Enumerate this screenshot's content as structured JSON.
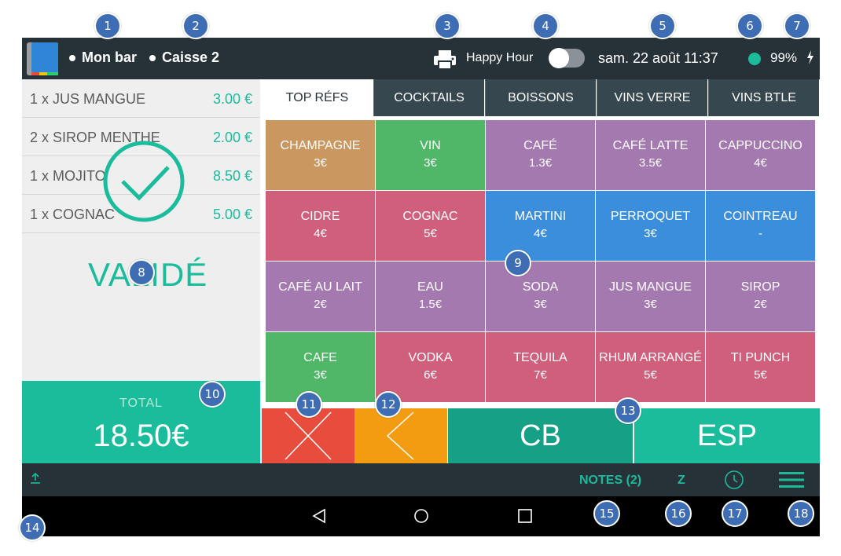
{
  "header": {
    "bar_name": "Mon bar",
    "register_name": "Caisse 2",
    "happy_hour_label": "Happy Hour",
    "happy_hour_on": false,
    "datetime": "sam. 22 août 11:37",
    "battery": "99%",
    "status_color": "#1abc9c"
  },
  "ticket": {
    "items": [
      {
        "label": "1 x JUS MANGUE",
        "price": "3.00 €"
      },
      {
        "label": "2 x SIROP MENTHE",
        "price": "2.00 €"
      },
      {
        "label": "1 x MOJITO",
        "price": "8.50 €"
      },
      {
        "label": "1 x COGNAC",
        "price": "5.00 €"
      }
    ],
    "validated_label": "VALIDÉ",
    "total_label": "TOTAL",
    "total_value": "18.50€"
  },
  "tabs": [
    {
      "label": "TOP RÉFS",
      "active": true
    },
    {
      "label": "COCKTAILS",
      "active": false
    },
    {
      "label": "BOISSONS",
      "active": false
    },
    {
      "label": "VINS VERRE",
      "active": false
    },
    {
      "label": "VINS BTLE",
      "active": false
    }
  ],
  "products": [
    {
      "name": "CHAMPAGNE",
      "price": "3€",
      "color": "#c9975f"
    },
    {
      "name": "VIN",
      "price": "3€",
      "color": "#4fb767"
    },
    {
      "name": "CAFÉ",
      "price": "1.3€",
      "color": "#a479b0"
    },
    {
      "name": "CAFÉ LATTE",
      "price": "3.5€",
      "color": "#a479b0"
    },
    {
      "name": "CAPPUCCINO",
      "price": "4€",
      "color": "#a479b0"
    },
    {
      "name": "CIDRE",
      "price": "4€",
      "color": "#d05f7c"
    },
    {
      "name": "COGNAC",
      "price": "5€",
      "color": "#d05f7c"
    },
    {
      "name": "MARTINI",
      "price": "4€",
      "color": "#3b8edb"
    },
    {
      "name": "PERROQUET",
      "price": "3€",
      "color": "#3b8edb"
    },
    {
      "name": "COINTREAU",
      "price": "-",
      "color": "#3b8edb"
    },
    {
      "name": "CAFÉ AU LAIT",
      "price": "2€",
      "color": "#a479b0"
    },
    {
      "name": "EAU",
      "price": "1.5€",
      "color": "#a479b0"
    },
    {
      "name": "SODA",
      "price": "3€",
      "color": "#a479b0"
    },
    {
      "name": "JUS MANGUE",
      "price": "3€",
      "color": "#a479b0"
    },
    {
      "name": "SIROP",
      "price": "2€",
      "color": "#a479b0"
    },
    {
      "name": "CAFE",
      "price": "3€",
      "color": "#4fb767"
    },
    {
      "name": "VODKA",
      "price": "6€",
      "color": "#d05f7c"
    },
    {
      "name": "TEQUILA",
      "price": "7€",
      "color": "#d05f7c"
    },
    {
      "name": "RHUM ARRANGÉ",
      "price": "5€",
      "color": "#d05f7c"
    },
    {
      "name": "TI PUNCH",
      "price": "5€",
      "color": "#d05f7c"
    }
  ],
  "actions": {
    "cb_label": "CB",
    "esp_label": "ESP"
  },
  "footer": {
    "notes_label": "NOTES (2)",
    "z_label": "Z"
  },
  "callouts": [
    "1",
    "2",
    "3",
    "4",
    "5",
    "6",
    "7",
    "8",
    "9",
    "10",
    "11",
    "12",
    "13",
    "14",
    "15",
    "16",
    "17",
    "18"
  ]
}
